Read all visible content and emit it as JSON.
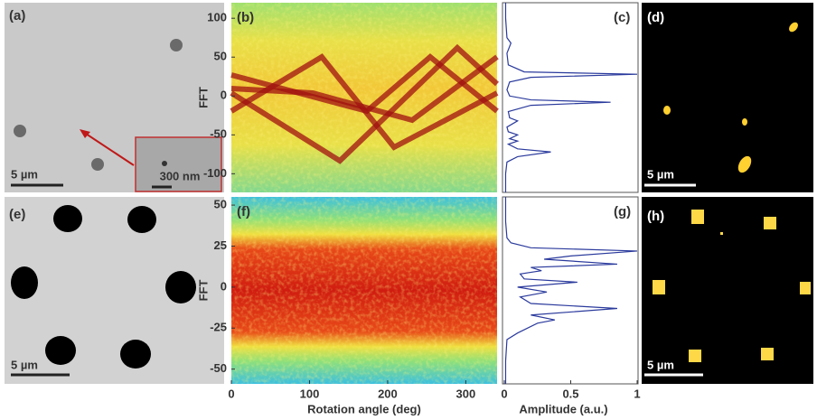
{
  "panels": [
    {
      "label": "(a)",
      "scale_bar": "5 µm",
      "inset_scale_bar": "300 nm"
    },
    {
      "label": "(d)",
      "scale_bar": "5 µm"
    },
    {
      "label": "(e)",
      "scale_bar": "5 µm"
    },
    {
      "label": "(h)",
      "scale_bar": "5 µm"
    }
  ],
  "chart_data": [
    {
      "type": "heatmap",
      "title": "(b)",
      "y_label": "FFT",
      "ylim": [
        -124,
        120
      ],
      "yticks": [
        -100,
        -50,
        0,
        50,
        100
      ]
    },
    {
      "type": "line",
      "title": "(c)",
      "orientation": "vertical",
      "color": "#2a3a9c",
      "xlim": [
        0,
        1
      ],
      "ylim": [
        -124,
        120
      ],
      "x": [
        -124,
        -100,
        -85,
        -78,
        -72,
        -68,
        -62,
        -58,
        -55,
        -50,
        -46,
        -40,
        -32,
        -28,
        -20,
        -12,
        -8,
        -5,
        0,
        8,
        18,
        24,
        28,
        31,
        40,
        55,
        68,
        75,
        100,
        120
      ],
      "values": [
        0.01,
        0.01,
        0.02,
        0.1,
        0.35,
        0.1,
        0.03,
        0.1,
        0.04,
        0.1,
        0.03,
        0.02,
        0.1,
        0.04,
        0.03,
        0.2,
        0.8,
        0.2,
        0.04,
        0.02,
        0.04,
        0.2,
        1,
        0.15,
        0.03,
        0.02,
        0.05,
        0.02,
        0.01,
        0.01
      ]
    },
    {
      "type": "heatmap",
      "title": "(f)",
      "y_label": "FFT",
      "x_label": "Rotation angle (deg)",
      "ylim": [
        -59,
        55
      ],
      "yticks": [
        -50,
        -25,
        0,
        25,
        50
      ],
      "xlim": [
        0,
        340
      ],
      "xticks": [
        0,
        100,
        200,
        300
      ]
    },
    {
      "type": "line",
      "title": "(g)",
      "orientation": "vertical",
      "color": "#2a3a9c",
      "x_label": "Amplitude (a.u.)",
      "xlim": [
        0,
        1
      ],
      "xticks": [
        0,
        0.5,
        1
      ],
      "ylim": [
        -59,
        55
      ],
      "x": [
        -59,
        -45,
        -32,
        -28,
        -22,
        -20,
        -17,
        -13,
        -10,
        -6,
        -3,
        0,
        3,
        5,
        8,
        10,
        12,
        14,
        17,
        19,
        22,
        24,
        27,
        30,
        40,
        55
      ],
      "values": [
        0.01,
        0.01,
        0.02,
        0.1,
        0.25,
        0.38,
        0.2,
        0.85,
        0.2,
        0.12,
        0.32,
        0.1,
        0.55,
        0.15,
        0.12,
        0.28,
        0.2,
        0.85,
        0.3,
        0.5,
        1,
        0.2,
        0.05,
        0.02,
        0.01,
        0.01
      ]
    }
  ]
}
